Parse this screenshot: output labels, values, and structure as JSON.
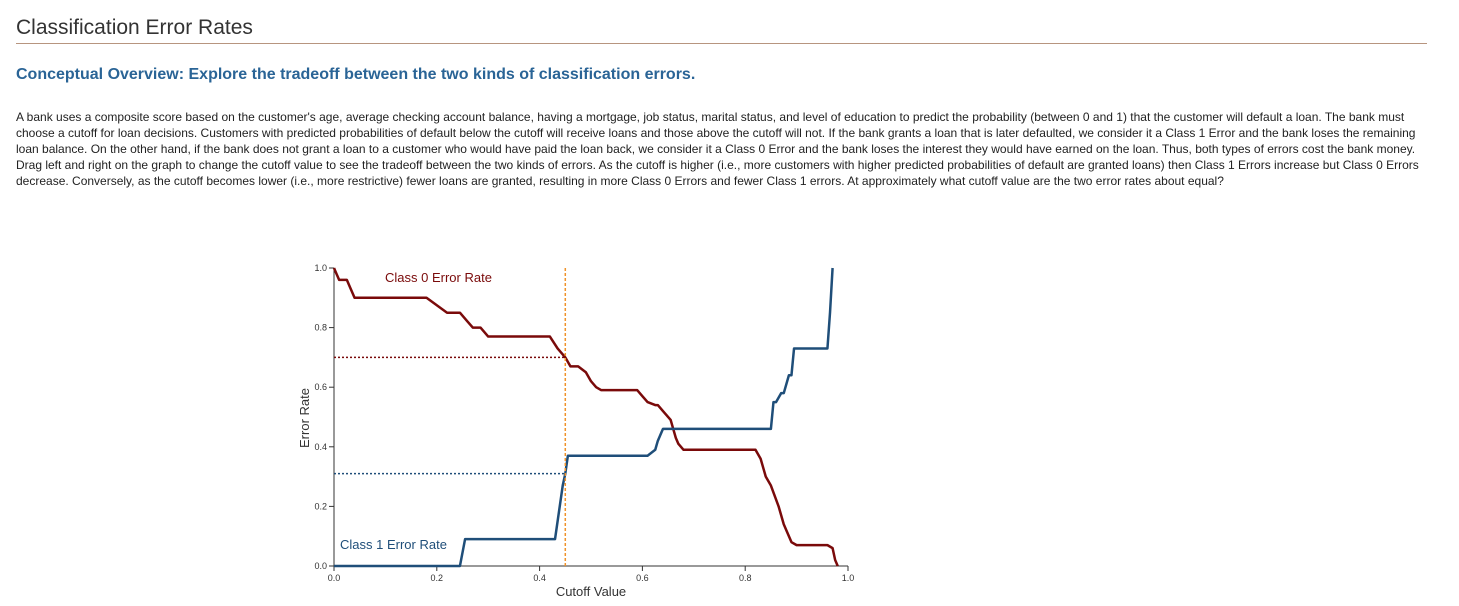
{
  "page": {
    "title": "Classification Error Rates",
    "heading": "Conceptual Overview: Explore the tradeoff between the two kinds of classification errors.",
    "body": "A bank uses a composite score based on the customer's age, average checking account balance, having a mortgage, job status, marital status, and level of education to predict the probability (between 0 and 1) that the customer will default a loan. The bank must choose a cutoff for loan decisions. Customers with predicted probabilities of default below the cutoff will receive loans and those above the cutoff will not. If the bank grants a loan that is later defaulted, we consider it a Class 1 Error and the bank loses the remaining loan balance. On the other hand, if the bank does not grant a loan to a customer who would have paid the loan back, we consider it a Class 0 Error and the bank loses the interest they would have earned on the loan. Thus, both types of errors cost the bank money. Drag left and right on the graph to change the cutoff value to see the tradeoff between the two kinds of errors. As the cutoff is higher (i.e., more customers with higher predicted probabilities of default are granted loans) then Class 1 Errors increase but Class 0 Errors decrease. Conversely, as the cutoff becomes lower (i.e., more restrictive) fewer loans are granted, resulting in more Class 0 Errors and fewer Class 1 errors. At approximately what cutoff value are the two error rates about equal?"
  },
  "chart_data": {
    "type": "line",
    "xlabel": "Cutoff Value",
    "ylabel": "Error Rate",
    "xlim": [
      0,
      1
    ],
    "ylim": [
      0,
      1
    ],
    "xticks": [
      "0.0",
      "0.2",
      "0.4",
      "0.6",
      "0.8",
      "1.0"
    ],
    "yticks": [
      "0.0",
      "0.2",
      "0.4",
      "0.6",
      "0.8",
      "1.0"
    ],
    "cutoff": 0.45,
    "colors": {
      "class0": "#7a0a0a",
      "class1": "#1f4e79",
      "cutoff": "#f0922a"
    },
    "series": [
      {
        "name": "Class 0 Error Rate",
        "x": [
          0.0,
          0.005,
          0.01,
          0.02,
          0.025,
          0.03,
          0.04,
          0.18,
          0.22,
          0.245,
          0.26,
          0.27,
          0.285,
          0.3,
          0.42,
          0.435,
          0.45,
          0.46,
          0.475,
          0.49,
          0.5,
          0.51,
          0.52,
          0.59,
          0.6,
          0.61,
          0.625,
          0.63,
          0.64,
          0.655,
          0.66,
          0.665,
          0.67,
          0.68,
          0.82,
          0.83,
          0.835,
          0.84,
          0.85,
          0.865,
          0.875,
          0.88,
          0.89,
          0.9,
          0.96,
          0.97,
          0.975,
          0.98
        ],
        "y": [
          1.0,
          0.98,
          0.96,
          0.96,
          0.96,
          0.94,
          0.9,
          0.9,
          0.85,
          0.85,
          0.82,
          0.8,
          0.8,
          0.77,
          0.77,
          0.73,
          0.7,
          0.67,
          0.67,
          0.65,
          0.62,
          0.6,
          0.59,
          0.59,
          0.57,
          0.55,
          0.54,
          0.54,
          0.52,
          0.49,
          0.46,
          0.43,
          0.41,
          0.39,
          0.39,
          0.36,
          0.33,
          0.3,
          0.27,
          0.2,
          0.14,
          0.12,
          0.08,
          0.07,
          0.07,
          0.06,
          0.02,
          0.0
        ]
      },
      {
        "name": "Class 1 Error Rate",
        "x": [
          0.0,
          0.245,
          0.255,
          0.43,
          0.445,
          0.45,
          0.455,
          0.61,
          0.625,
          0.63,
          0.64,
          0.85,
          0.855,
          0.86,
          0.87,
          0.875,
          0.885,
          0.89,
          0.895,
          0.9,
          0.96,
          0.965,
          0.97
        ],
        "y": [
          0.0,
          0.0,
          0.09,
          0.09,
          0.27,
          0.31,
          0.37,
          0.37,
          0.39,
          0.42,
          0.46,
          0.46,
          0.55,
          0.55,
          0.58,
          0.58,
          0.64,
          0.64,
          0.73,
          0.73,
          0.73,
          0.85,
          1.0
        ]
      }
    ]
  }
}
